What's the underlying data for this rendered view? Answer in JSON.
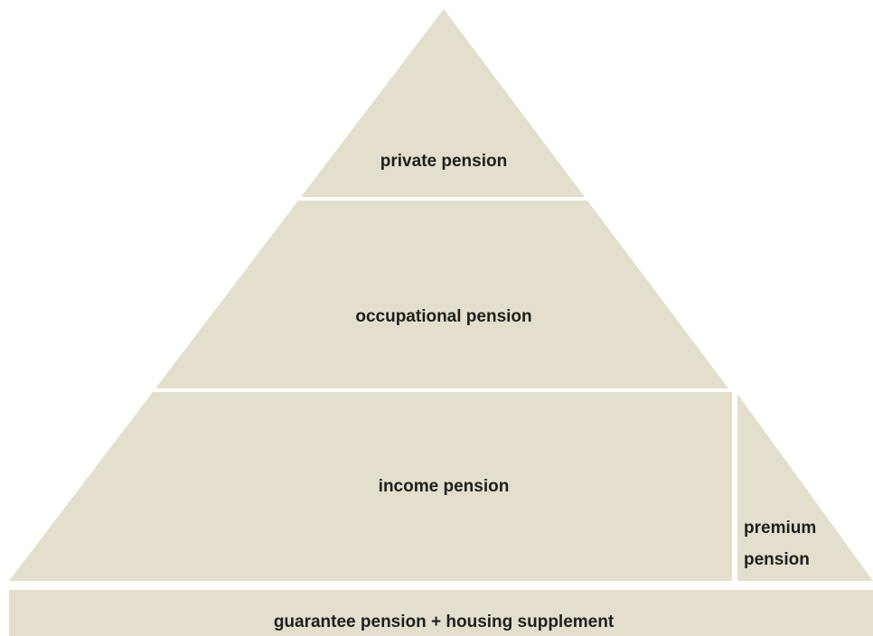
{
  "pyramid": {
    "private": "private pension",
    "occupational": "occupational pension",
    "income": "income pension",
    "premium": [
      "premium",
      "pension"
    ],
    "base": "guarantee pension + housing supplement"
  }
}
